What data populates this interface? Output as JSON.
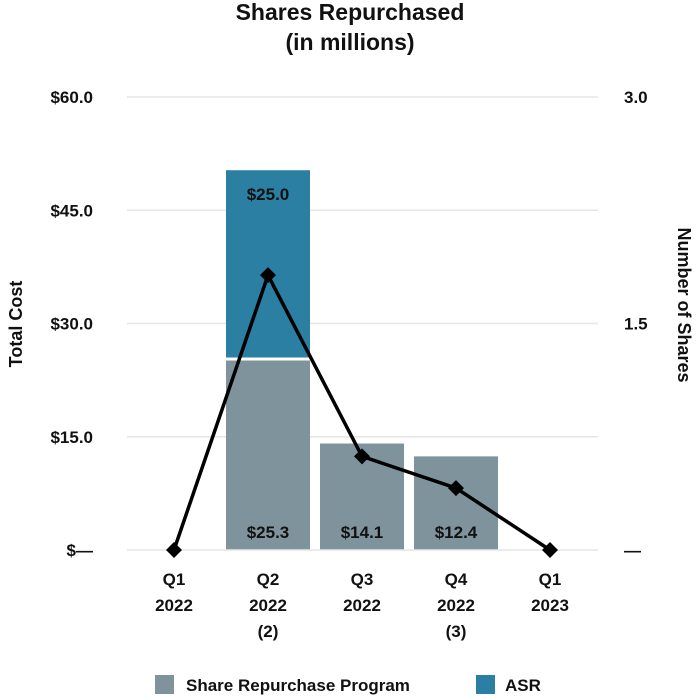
{
  "chart_data": {
    "type": "bar",
    "title": [
      "Shares Repurchased",
      "(in millions)"
    ],
    "categories": [
      [
        "Q1",
        "2022"
      ],
      [
        "Q2",
        "2022",
        "(2)"
      ],
      [
        "Q3",
        "2022"
      ],
      [
        "Q4",
        "2022",
        "(3)"
      ],
      [
        "Q1",
        "2023"
      ]
    ],
    "stacked": true,
    "series": [
      {
        "name": "Share Repurchase Program",
        "axis": "left",
        "kind": "bar",
        "color": "#7f939c",
        "values": [
          0,
          25.3,
          14.1,
          12.4,
          0
        ]
      },
      {
        "name": "ASR",
        "axis": "left",
        "kind": "bar",
        "color": "#2a7fa3",
        "values": [
          0,
          25.0,
          0,
          0,
          0
        ]
      },
      {
        "kind": "line",
        "axis": "right",
        "color": "#000000",
        "marker": "diamond",
        "values": [
          0,
          1.82,
          0.62,
          0.41,
          0
        ]
      }
    ],
    "data_labels": [
      {
        "category": 1,
        "series": 1,
        "text": "$25.0"
      },
      {
        "category": 1,
        "series": 0,
        "text": "$25.3"
      },
      {
        "category": 2,
        "series": 0,
        "text": "$14.1"
      },
      {
        "category": 3,
        "series": 0,
        "text": "$12.4"
      }
    ],
    "ylabel": "Total Cost",
    "ylabel_right": "Number of Shares",
    "ylim": [
      0,
      60
    ],
    "ylim_right": [
      0,
      3
    ],
    "yticks": [
      {
        "value": 0,
        "label": "$—"
      },
      {
        "value": 15,
        "label": "$15.0"
      },
      {
        "value": 30,
        "label": "$30.0"
      },
      {
        "value": 45,
        "label": "$45.0"
      },
      {
        "value": 60,
        "label": "$60.0"
      }
    ],
    "yticks_right": [
      {
        "value": 0,
        "label": "—"
      },
      {
        "value": 1.5,
        "label": "1.5"
      },
      {
        "value": 3,
        "label": "3.0"
      }
    ],
    "grid": true,
    "legend": {
      "position": "bottom"
    }
  }
}
